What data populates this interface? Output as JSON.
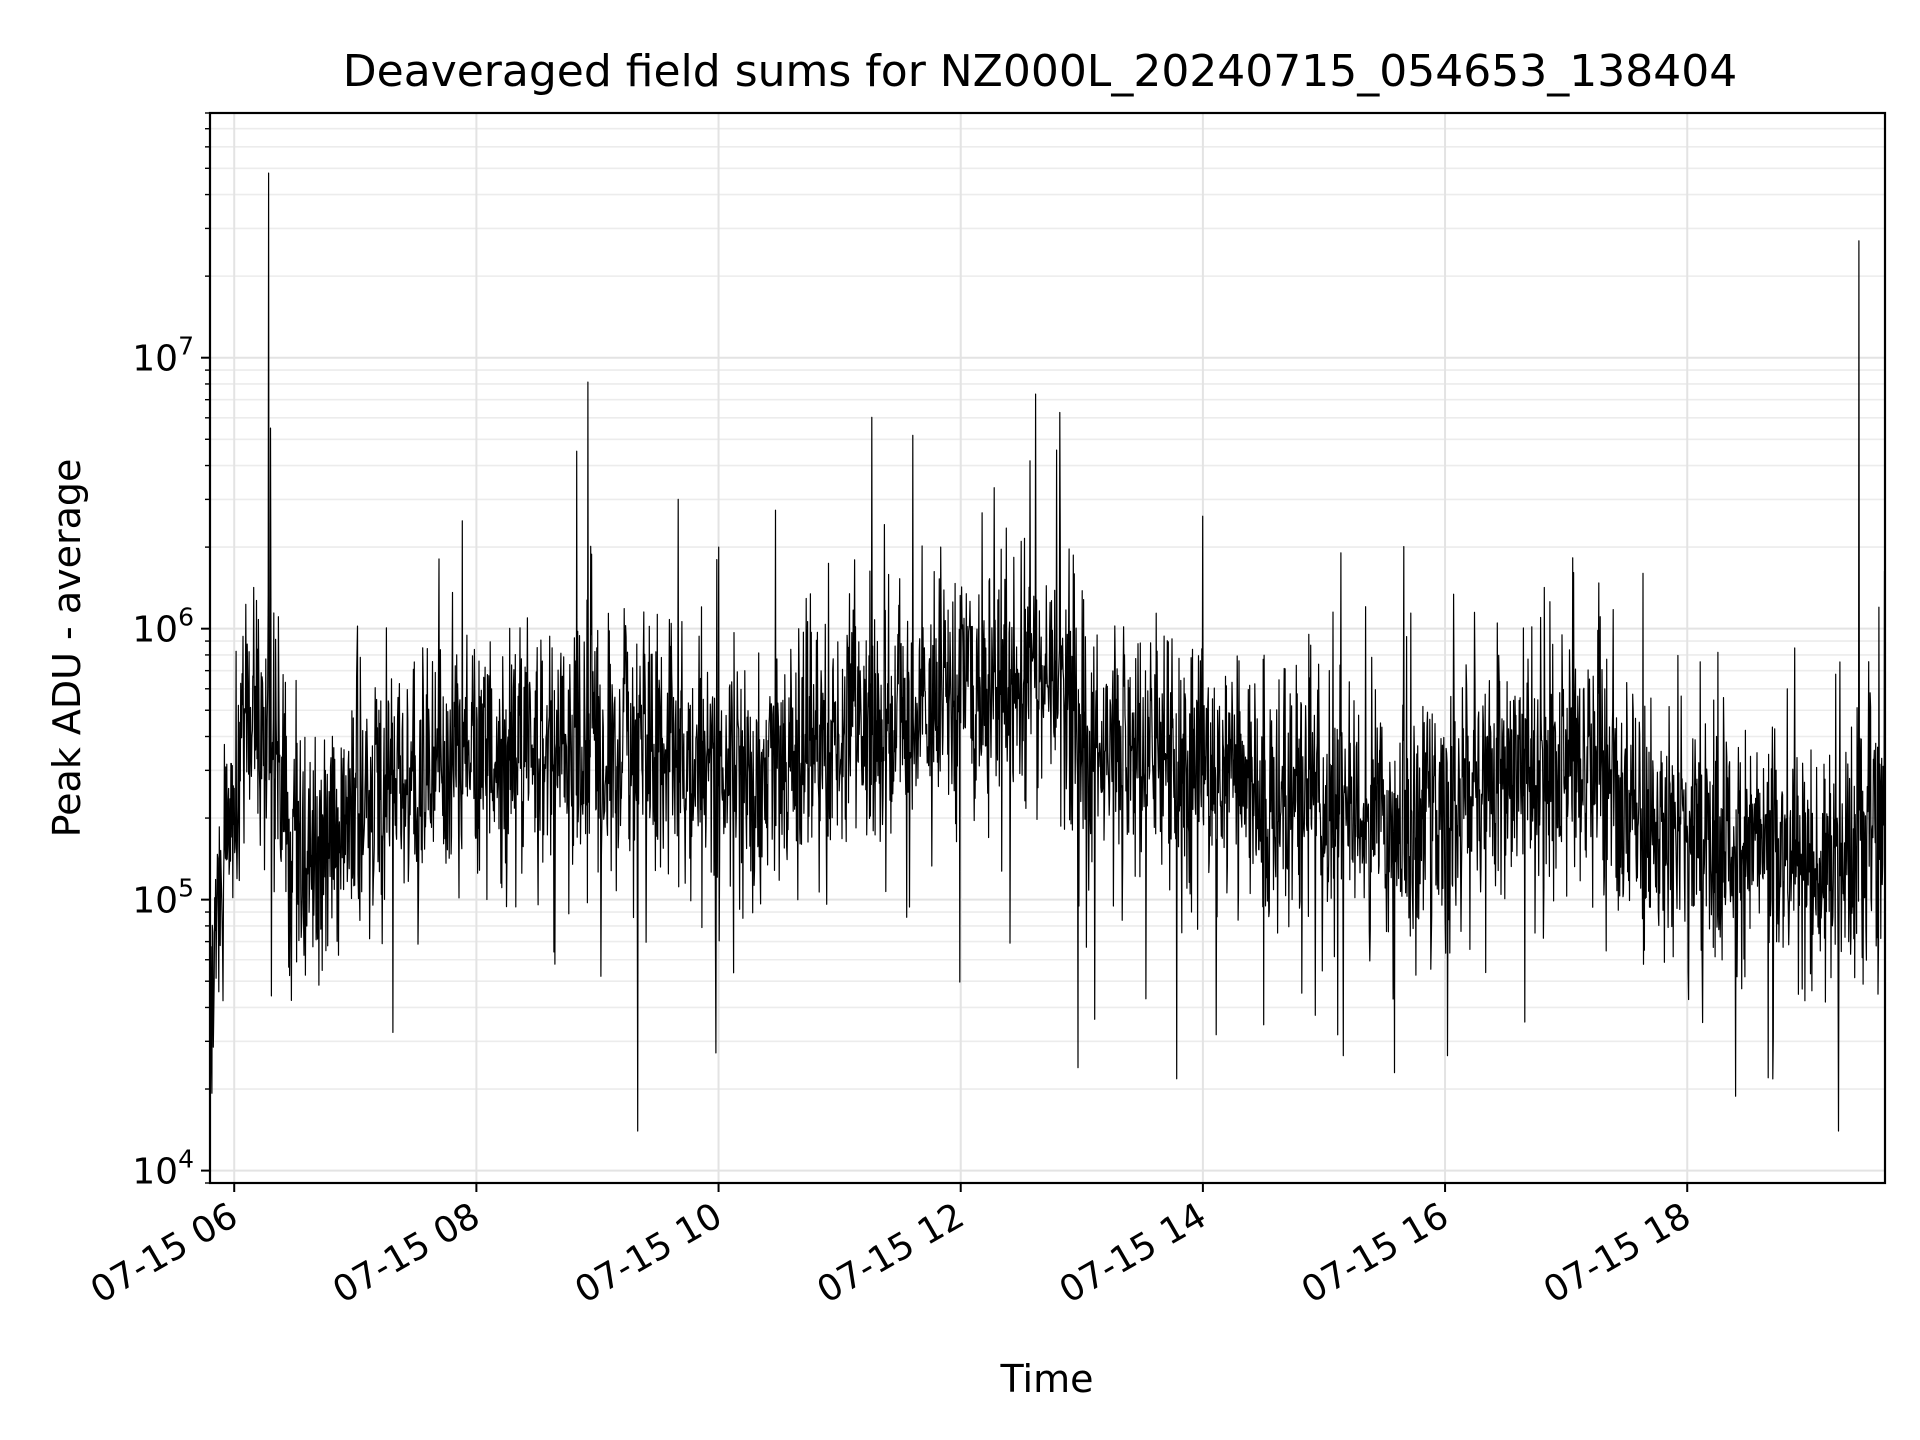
{
  "chart_data": {
    "type": "line",
    "title": "Deaveraged field sums for NZ000L_20240715_054653_138404",
    "xlabel": "Time",
    "ylabel": "Peak ADU - average",
    "x_type": "datetime",
    "x_range": [
      "2024-07-15 05:48",
      "2024-07-15 19:38"
    ],
    "y_scale": "log",
    "ylim": [
      9000,
      80000000
    ],
    "grid": "major and minor",
    "legend": "none",
    "line_color": "#000000",
    "x_ticks": [
      {
        "value": "2024-07-15 06:00",
        "label": "07-15 06"
      },
      {
        "value": "2024-07-15 08:00",
        "label": "07-15 08"
      },
      {
        "value": "2024-07-15 10:00",
        "label": "07-15 10"
      },
      {
        "value": "2024-07-15 12:00",
        "label": "07-15 12"
      },
      {
        "value": "2024-07-15 14:00",
        "label": "07-15 14"
      },
      {
        "value": "2024-07-15 16:00",
        "label": "07-15 16"
      },
      {
        "value": "2024-07-15 18:00",
        "label": "07-15 18"
      }
    ],
    "y_ticks": [
      {
        "value": 10000,
        "base": "10",
        "exp": "4"
      },
      {
        "value": 100000,
        "base": "10",
        "exp": "5"
      },
      {
        "value": 1000000,
        "base": "10",
        "exp": "6"
      },
      {
        "value": 10000000,
        "base": "10",
        "exp": "7"
      }
    ],
    "baseline": [
      [
        "2024-07-15 05:48",
        40000
      ],
      [
        "2024-07-15 05:55",
        150000
      ],
      [
        "2024-07-15 06:05",
        400000
      ],
      [
        "2024-07-15 06:15",
        450000
      ],
      [
        "2024-07-15 06:25",
        250000
      ],
      [
        "2024-07-15 06:40",
        120000
      ],
      [
        "2024-07-15 07:00",
        200000
      ],
      [
        "2024-07-15 07:30",
        260000
      ],
      [
        "2024-07-15 08:00",
        350000
      ],
      [
        "2024-07-15 09:00",
        350000
      ],
      [
        "2024-07-15 10:00",
        300000
      ],
      [
        "2024-07-15 11:00",
        400000
      ],
      [
        "2024-07-15 12:00",
        550000
      ],
      [
        "2024-07-15 12:45",
        700000
      ],
      [
        "2024-07-15 13:00",
        350000
      ],
      [
        "2024-07-15 14:00",
        300000
      ],
      [
        "2024-07-15 15:00",
        220000
      ],
      [
        "2024-07-15 15:45",
        180000
      ],
      [
        "2024-07-15 16:30",
        300000
      ],
      [
        "2024-07-15 17:00",
        350000
      ],
      [
        "2024-07-15 18:00",
        180000
      ],
      [
        "2024-07-15 19:00",
        130000
      ],
      [
        "2024-07-15 19:38",
        200000
      ]
    ],
    "spikes": [
      [
        "2024-07-15 06:17",
        48000000
      ],
      [
        "2024-07-15 06:18",
        5500000
      ],
      [
        "2024-07-15 07:53",
        2500000
      ],
      [
        "2024-07-15 09:20",
        2200000
      ],
      [
        "2024-07-15 09:20",
        14000
      ],
      [
        "2024-07-15 09:40",
        3000000
      ],
      [
        "2024-07-15 10:00",
        2000000
      ],
      [
        "2024-07-15 11:50",
        2000000
      ],
      [
        "2024-07-15 12:30",
        2100000
      ],
      [
        "2024-07-15 12:58",
        24000
      ],
      [
        "2024-07-15 14:00",
        2600000
      ],
      [
        "2024-07-15 15:35",
        23000
      ],
      [
        "2024-07-15 17:38",
        1600000
      ],
      [
        "2024-07-15 18:40",
        22000
      ],
      [
        "2024-07-15 19:15",
        14000
      ],
      [
        "2024-07-15 19:25",
        27000000
      ],
      [
        "2024-07-15 19:35",
        1200000
      ]
    ]
  }
}
